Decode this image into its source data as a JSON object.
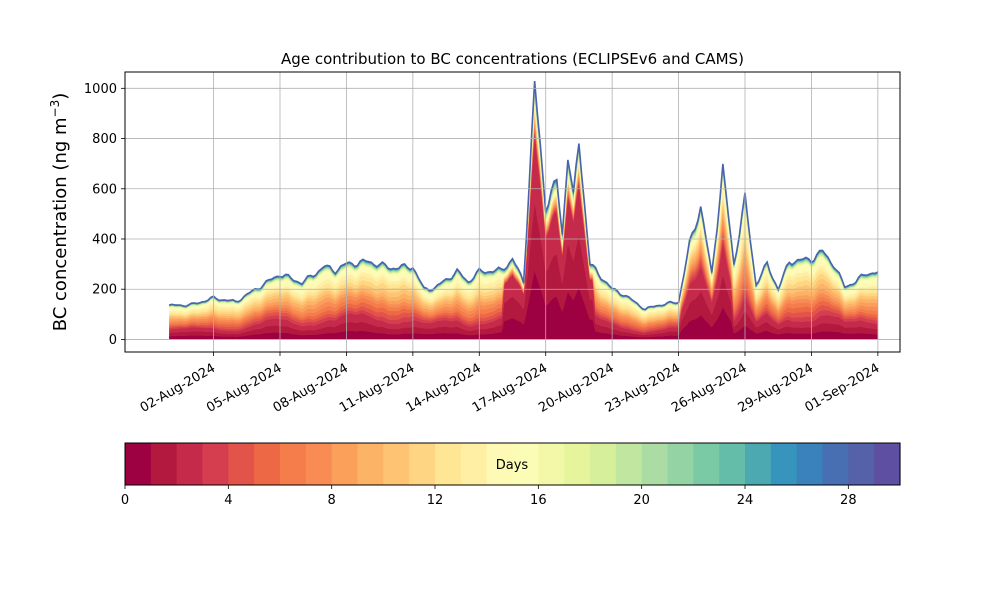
{
  "chart_data": {
    "type": "area",
    "title": "Age contribution to BC concentrations (ECLIPSEv6 and CAMS)",
    "ylabel": "BC concentration (ng m",
    "ylabel_sup": "−3",
    "ylabel_close": ")",
    "ylim": [
      -50,
      1065
    ],
    "yticks": [
      0,
      200,
      400,
      600,
      800,
      1000
    ],
    "xlim": [
      "2024-07-29",
      "2024-09-02"
    ],
    "x_start": "2024-07-31",
    "x_end": "2024-09-01",
    "xticks": [
      "2024-08-02",
      "2024-08-05",
      "2024-08-08",
      "2024-08-11",
      "2024-08-14",
      "2024-08-17",
      "2024-08-20",
      "2024-08-23",
      "2024-08-26",
      "2024-08-29",
      "2024-09-01"
    ],
    "xtick_labels": [
      "02-Aug-2024",
      "05-Aug-2024",
      "08-Aug-2024",
      "11-Aug-2024",
      "14-Aug-2024",
      "17-Aug-2024",
      "20-Aug-2024",
      "23-Aug-2024",
      "26-Aug-2024",
      "29-Aug-2024",
      "01-Sep-2024"
    ],
    "grid": true,
    "series_count": 30,
    "total": [
      {
        "x": "2024-07-31T00:00",
        "y": 135
      },
      {
        "x": "2024-08-01T00:00",
        "y": 138
      },
      {
        "x": "2024-08-02T00:00",
        "y": 165
      },
      {
        "x": "2024-08-03T00:00",
        "y": 150
      },
      {
        "x": "2024-08-04T00:00",
        "y": 205
      },
      {
        "x": "2024-08-05T00:00",
        "y": 260
      },
      {
        "x": "2024-08-06T00:00",
        "y": 225
      },
      {
        "x": "2024-08-07T00:00",
        "y": 290
      },
      {
        "x": "2024-08-07T12:00",
        "y": 275
      },
      {
        "x": "2024-08-08T00:00",
        "y": 300
      },
      {
        "x": "2024-08-09T00:00",
        "y": 310
      },
      {
        "x": "2024-08-10T00:00",
        "y": 285
      },
      {
        "x": "2024-08-11T00:00",
        "y": 290
      },
      {
        "x": "2024-08-11T12:00",
        "y": 200
      },
      {
        "x": "2024-08-12T00:00",
        "y": 205
      },
      {
        "x": "2024-08-13T00:00",
        "y": 270
      },
      {
        "x": "2024-08-13T12:00",
        "y": 230
      },
      {
        "x": "2024-08-14T00:00",
        "y": 270
      },
      {
        "x": "2024-08-15T00:00",
        "y": 275
      },
      {
        "x": "2024-08-15T12:00",
        "y": 320
      },
      {
        "x": "2024-08-16T00:00",
        "y": 230
      },
      {
        "x": "2024-08-16T12:00",
        "y": 1010
      },
      {
        "x": "2024-08-17T00:00",
        "y": 530
      },
      {
        "x": "2024-08-17T12:00",
        "y": 630
      },
      {
        "x": "2024-08-17T18:00",
        "y": 420
      },
      {
        "x": "2024-08-18T00:00",
        "y": 740
      },
      {
        "x": "2024-08-18T06:00",
        "y": 560
      },
      {
        "x": "2024-08-18T12:00",
        "y": 795
      },
      {
        "x": "2024-08-19T00:00",
        "y": 300
      },
      {
        "x": "2024-08-19T12:00",
        "y": 250
      },
      {
        "x": "2024-08-20T00:00",
        "y": 200
      },
      {
        "x": "2024-08-20T12:00",
        "y": 180
      },
      {
        "x": "2024-08-21T00:00",
        "y": 150
      },
      {
        "x": "2024-08-21T12:00",
        "y": 120
      },
      {
        "x": "2024-08-22T00:00",
        "y": 135
      },
      {
        "x": "2024-08-23T00:00",
        "y": 150
      },
      {
        "x": "2024-08-23T12:00",
        "y": 380
      },
      {
        "x": "2024-08-24T00:00",
        "y": 530
      },
      {
        "x": "2024-08-24T12:00",
        "y": 260
      },
      {
        "x": "2024-08-25T00:00",
        "y": 680
      },
      {
        "x": "2024-08-25T12:00",
        "y": 300
      },
      {
        "x": "2024-08-26T00:00",
        "y": 560
      },
      {
        "x": "2024-08-26T12:00",
        "y": 220
      },
      {
        "x": "2024-08-27T00:00",
        "y": 300
      },
      {
        "x": "2024-08-27T12:00",
        "y": 200
      },
      {
        "x": "2024-08-28T00:00",
        "y": 310
      },
      {
        "x": "2024-08-29T00:00",
        "y": 320
      },
      {
        "x": "2024-08-29T12:00",
        "y": 350
      },
      {
        "x": "2024-08-30T00:00",
        "y": 300
      },
      {
        "x": "2024-08-30T12:00",
        "y": 210
      },
      {
        "x": "2024-08-31T00:00",
        "y": 230
      },
      {
        "x": "2024-08-31T12:00",
        "y": 265
      }
    ],
    "colorbar": {
      "label": "Days",
      "min": 0,
      "max": 30,
      "ticks": [
        0,
        4,
        8,
        12,
        16,
        20,
        24,
        28
      ],
      "colors": [
        "#9e0142",
        "#b3183f",
        "#c52a4b",
        "#d53e4f",
        "#e25349",
        "#ed6945",
        "#f47d4b",
        "#f88c54",
        "#fba05b",
        "#fcb366",
        "#fec473",
        "#fed683",
        "#fee695",
        "#ffefa4",
        "#fff9b6",
        "#fbfcb6",
        "#f2f8a8",
        "#e6f59b",
        "#d5ef9a",
        "#c1e69f",
        "#aadca4",
        "#93d3a4",
        "#7acba5",
        "#63bda8",
        "#4ca9b2",
        "#3794bc",
        "#3982bb",
        "#476fb1",
        "#5561a9",
        "#5e4fa2"
      ]
    }
  }
}
